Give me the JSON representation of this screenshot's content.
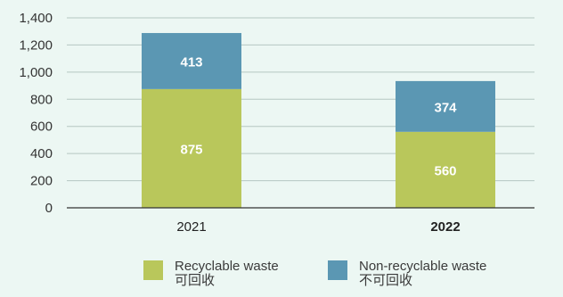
{
  "chart_data": {
    "type": "bar",
    "stacked": true,
    "categories": [
      "2021",
      "2022"
    ],
    "category_bold": [
      false,
      true
    ],
    "series": [
      {
        "name": "Recyclable waste",
        "name_zh": "可回收",
        "color": "#b9c75b",
        "values": [
          875,
          560
        ]
      },
      {
        "name": "Non-recyclable waste",
        "name_zh": "不可回收",
        "color": "#5b97b3",
        "values": [
          413,
          374
        ]
      }
    ],
    "yticks": [
      "0",
      "200",
      "400",
      "600",
      "800",
      "1,000",
      "1,200",
      "1,400"
    ],
    "ylim": [
      0,
      1400
    ],
    "grid": true,
    "legend_position": "bottom",
    "colors": {
      "background": "#ecf7f3",
      "grid": "#b5c7c2",
      "axis": "#333333",
      "bar_label": "#ffffff"
    }
  }
}
